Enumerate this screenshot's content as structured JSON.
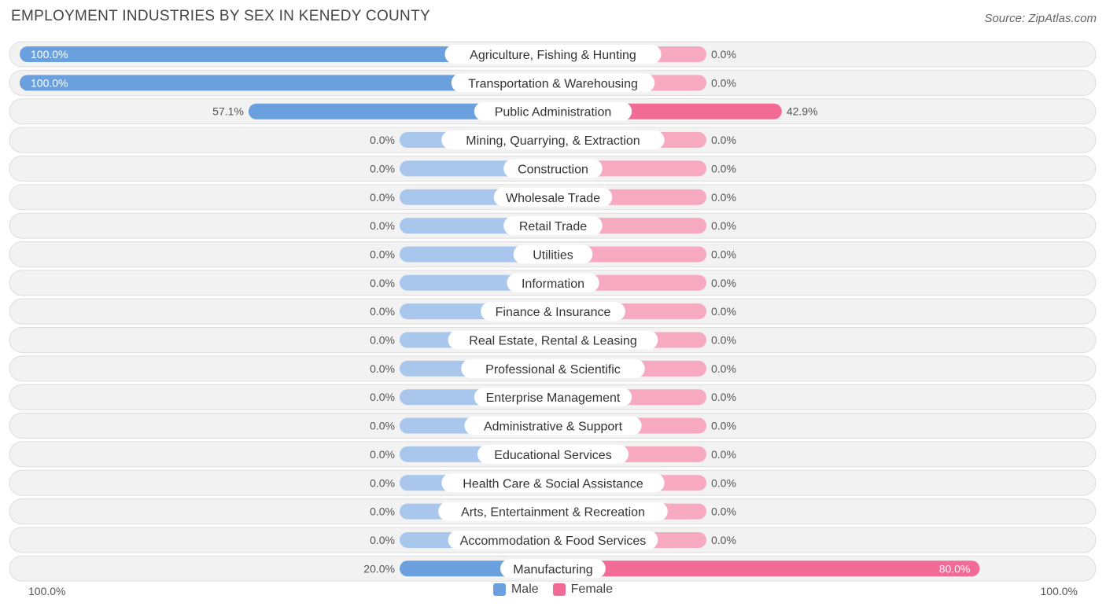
{
  "title": "EMPLOYMENT INDUSTRIES BY SEX IN KENEDY COUNTY",
  "source": "Source: ZipAtlas.com",
  "colors": {
    "male_strong": "#6aa0dd",
    "male_light": "#a9c7ec",
    "female_strong": "#f16b96",
    "female_light": "#f6a9c0",
    "row_bg": "#f2f2f2",
    "row_border": "#dddddd"
  },
  "legend": {
    "male": "Male",
    "female": "Female"
  },
  "axis": {
    "left": "100.0%",
    "right": "100.0%"
  },
  "chart_data": {
    "type": "bar",
    "orientation": "horizontal-diverging",
    "categories": [
      "Agriculture, Fishing & Hunting",
      "Transportation & Warehousing",
      "Public Administration",
      "Mining, Quarrying, & Extraction",
      "Construction",
      "Wholesale Trade",
      "Retail Trade",
      "Utilities",
      "Information",
      "Finance & Insurance",
      "Real Estate, Rental & Leasing",
      "Professional & Scientific",
      "Enterprise Management",
      "Administrative & Support",
      "Educational Services",
      "Health Care & Social Assistance",
      "Arts, Entertainment & Recreation",
      "Accommodation & Food Services",
      "Manufacturing"
    ],
    "series": [
      {
        "name": "Male",
        "values": [
          100.0,
          100.0,
          57.1,
          0.0,
          0.0,
          0.0,
          0.0,
          0.0,
          0.0,
          0.0,
          0.0,
          0.0,
          0.0,
          0.0,
          0.0,
          0.0,
          0.0,
          0.0,
          20.0
        ]
      },
      {
        "name": "Female",
        "values": [
          0.0,
          0.0,
          42.9,
          0.0,
          0.0,
          0.0,
          0.0,
          0.0,
          0.0,
          0.0,
          0.0,
          0.0,
          0.0,
          0.0,
          0.0,
          0.0,
          0.0,
          0.0,
          80.0
        ]
      }
    ],
    "value_labels": {
      "male": [
        "100.0%",
        "100.0%",
        "57.1%",
        "0.0%",
        "0.0%",
        "0.0%",
        "0.0%",
        "0.0%",
        "0.0%",
        "0.0%",
        "0.0%",
        "0.0%",
        "0.0%",
        "0.0%",
        "0.0%",
        "0.0%",
        "0.0%",
        "0.0%",
        "20.0%"
      ],
      "female": [
        "0.0%",
        "0.0%",
        "42.9%",
        "0.0%",
        "0.0%",
        "0.0%",
        "0.0%",
        "0.0%",
        "0.0%",
        "0.0%",
        "0.0%",
        "0.0%",
        "0.0%",
        "0.0%",
        "0.0%",
        "0.0%",
        "0.0%",
        "0.0%",
        "80.0%"
      ]
    },
    "xlim": [
      -100,
      100
    ],
    "legend_position": "bottom-center"
  }
}
